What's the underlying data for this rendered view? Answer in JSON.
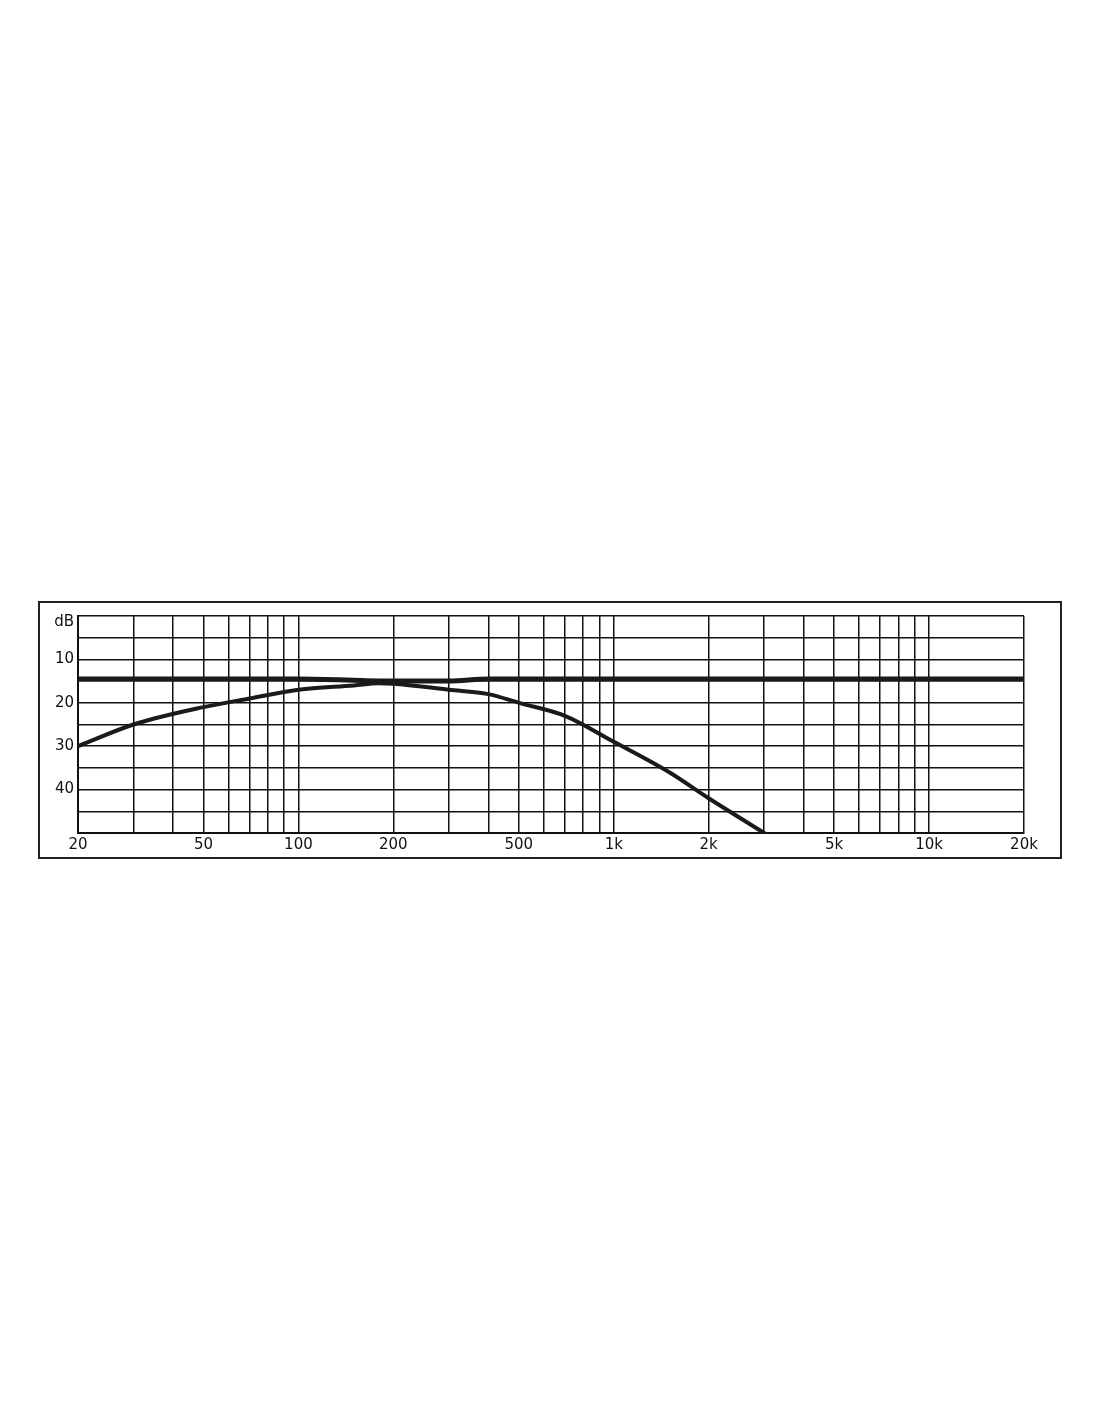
{
  "chart_data": {
    "type": "line",
    "ylabel": "dB",
    "log": "x",
    "grid": true,
    "legend": false,
    "marker": "none",
    "line_style": "solid",
    "xlim": [
      20,
      20000
    ],
    "ylim": [
      50,
      0
    ],
    "xticks": [
      20,
      {
        "value": 30,
        "label": null
      },
      {
        "value": 40,
        "label": null
      },
      50,
      {
        "value": 60,
        "label": null
      },
      {
        "value": 70,
        "label": null
      },
      {
        "value": 80,
        "label": null
      },
      {
        "value": 90,
        "label": null
      },
      100,
      200,
      {
        "value": 300,
        "label": null
      },
      {
        "value": 400,
        "label": null
      },
      500,
      {
        "value": 600,
        "label": null
      },
      {
        "value": 700,
        "label": null
      },
      {
        "value": 800,
        "label": null
      },
      {
        "value": 900,
        "label": null
      },
      {
        "value": 1000,
        "label": "1k"
      },
      {
        "value": 2000,
        "label": "2k"
      },
      {
        "value": 3000,
        "label": null
      },
      {
        "value": 4000,
        "label": null
      },
      {
        "value": 5000,
        "label": "5k"
      },
      {
        "value": 6000,
        "label": null
      },
      {
        "value": 7000,
        "label": null
      },
      {
        "value": 8000,
        "label": null
      },
      {
        "value": 9000,
        "label": null
      },
      {
        "value": 10000,
        "label": "10k"
      },
      {
        "value": 20000,
        "label": "20k"
      }
    ],
    "yticks": [
      {
        "value": 0,
        "label": null
      },
      {
        "value": 5,
        "label": null
      },
      10,
      {
        "value": 15,
        "label": null
      },
      20,
      {
        "value": 25,
        "label": null
      },
      30,
      {
        "value": 35,
        "label": null
      },
      40,
      {
        "value": 45,
        "label": null
      },
      {
        "value": 50,
        "label": null
      }
    ],
    "series": [
      {
        "color": "#1a1a1a",
        "x": [
          20,
          100,
          200,
          300,
          400,
          1000,
          20000
        ],
        "values": [
          14.5,
          14.5,
          15,
          15,
          14.5,
          14.5,
          14.5
        ]
      },
      {
        "color": "#1a1a1a",
        "x": [
          20,
          30,
          50,
          70,
          100,
          150,
          180,
          200,
          300,
          400,
          500,
          700,
          1000,
          1500,
          2000,
          3000
        ],
        "values": [
          30,
          25,
          21,
          19,
          17,
          16,
          15.5,
          15.6,
          17,
          18,
          20,
          23,
          29,
          36,
          42,
          50
        ]
      }
    ]
  }
}
